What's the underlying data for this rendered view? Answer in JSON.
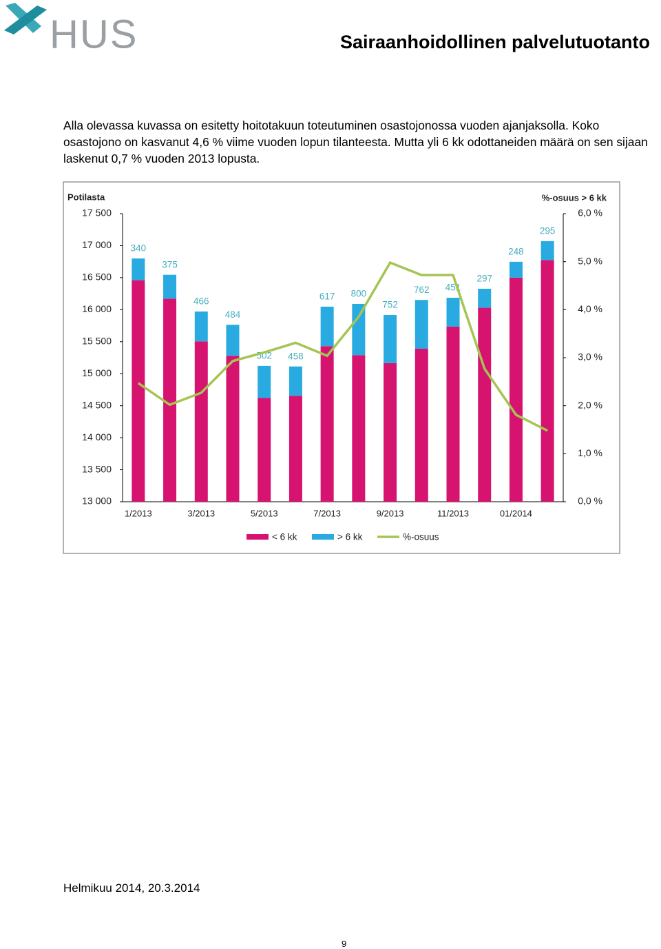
{
  "header": {
    "logo": "HUS",
    "title": "Sairaanhoidollinen palvelutuotanto"
  },
  "paragraph": "Alla olevassa kuvassa on esitetty hoitotakuun toteutuminen osastojonossa vuoden ajanjaksolla. Koko osastojono on kasvanut 4,6 % viime vuoden lopun tilanteesta. Mutta yli 6 kk odottaneiden määrä on sen sijaan laskenut 0,7 % vuoden 2013 lopusta.",
  "chart_data": {
    "type": "bar",
    "stacked": true,
    "y_label": "Potilasta",
    "y2_label": "%-osuus > 6 kk",
    "categories": [
      "1/2013",
      null,
      "3/2013",
      null,
      "5/2013",
      null,
      "7/2013",
      null,
      "9/2013",
      null,
      "11/2013",
      null,
      "01/2014",
      null
    ],
    "series": [
      {
        "name": "< 6 kk",
        "color": "#d6136f",
        "values": [
          16460,
          16170,
          15505,
          15280,
          14620,
          14655,
          15430,
          15290,
          15165,
          15390,
          15735,
          16030,
          16500,
          16775
        ]
      },
      {
        "name": "> 6 kk",
        "color": "#29abe2",
        "values": [
          340,
          375,
          466,
          484,
          502,
          458,
          617,
          800,
          752,
          762,
          451,
          297,
          248,
          295
        ]
      },
      {
        "name": "%-osuus",
        "type": "line",
        "axis": "y2",
        "color": "#a5c552",
        "values": [
          2.47,
          2.02,
          2.27,
          2.93,
          3.11,
          3.31,
          3.04,
          3.85,
          4.98,
          4.72,
          4.72,
          2.77,
          1.81,
          1.48
        ]
      }
    ],
    "ylim": [
      13000,
      17500
    ],
    "yticks": [
      {
        "value": 13000,
        "label": "13 000"
      },
      {
        "value": 13500,
        "label": "13 500"
      },
      {
        "value": 14000,
        "label": "14 000"
      },
      {
        "value": 14500,
        "label": "14 500"
      },
      {
        "value": 15000,
        "label": "15 000"
      },
      {
        "value": 15500,
        "label": "15 500"
      },
      {
        "value": 16000,
        "label": "16 000"
      },
      {
        "value": 16500,
        "label": "16 500"
      },
      {
        "value": 17000,
        "label": "17 000"
      },
      {
        "value": 17500,
        "label": "17 500"
      }
    ],
    "y2lim": [
      0,
      6
    ],
    "y2ticks": [
      {
        "value": 0,
        "label": "0,0 %"
      },
      {
        "value": 1,
        "label": "1,0 %"
      },
      {
        "value": 2,
        "label": "2,0 %"
      },
      {
        "value": 3,
        "label": "3,0 %"
      },
      {
        "value": 4,
        "label": "4,0 %"
      },
      {
        "value": 5,
        "label": "5,0 %"
      },
      {
        "value": 6,
        "label": "6,0 %"
      }
    ],
    "value_label_color": "#45aebf",
    "grid": false
  },
  "footer": {
    "date": "Helmikuu 2014, 20.3.2014",
    "page": "9"
  }
}
